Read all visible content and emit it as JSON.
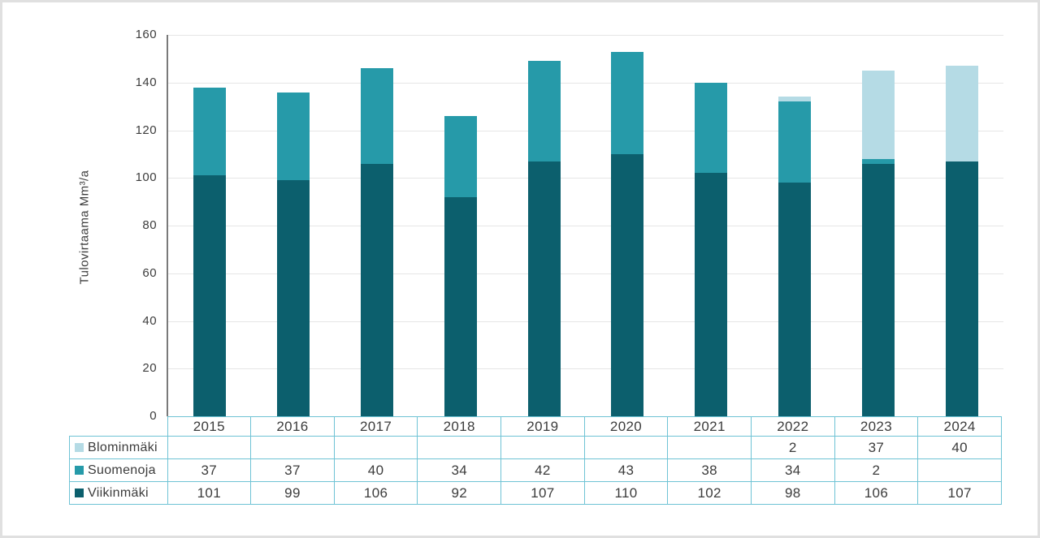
{
  "chart_data": {
    "type": "bar",
    "stacked": true,
    "title": "",
    "xlabel": "",
    "ylabel": "Tulovirtaama Mm³/a",
    "ylim": [
      0,
      160
    ],
    "ytick_step": 20,
    "y_tick_labels": [
      "0",
      "20",
      "40",
      "60",
      "80",
      "100",
      "120",
      "140",
      "160"
    ],
    "grid": true,
    "legend_position": "table-rows-left",
    "categories": [
      "2015",
      "2016",
      "2017",
      "2018",
      "2019",
      "2020",
      "2021",
      "2022",
      "2023",
      "2024"
    ],
    "series": [
      {
        "name": "Blominmäki",
        "color": "#B5DBE5",
        "values": [
          null,
          null,
          null,
          null,
          null,
          null,
          null,
          2,
          37,
          40
        ]
      },
      {
        "name": "Suomenoja",
        "color": "#269AA9",
        "values": [
          37,
          37,
          40,
          34,
          42,
          43,
          38,
          34,
          2,
          null
        ]
      },
      {
        "name": "Viikinmäki",
        "color": "#0C5F6D",
        "values": [
          101,
          99,
          106,
          92,
          107,
          110,
          102,
          98,
          106,
          107
        ]
      }
    ],
    "stack_order_bottom_to_top": [
      "Viikinmäki",
      "Suomenoja",
      "Blominmäki"
    ]
  },
  "colors": {
    "background": "#FFFFFF",
    "frame_border": "#E0E0E0",
    "axis_line": "#7A7A7A",
    "gridline": "#E6E6E6",
    "table_border": "#6FC3D5",
    "text": "#3C3C3C"
  }
}
